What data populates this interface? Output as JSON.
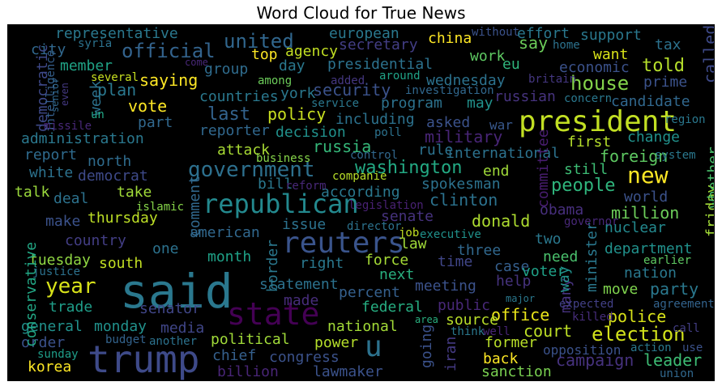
{
  "title": "Word Cloud for True News",
  "colors": {
    "background": "#000000",
    "frame": "#ffffff",
    "title": "#000000"
  },
  "words": [
    {
      "text": "said",
      "color": "#2a788e"
    },
    {
      "text": "trump",
      "color": "#3e4a89"
    },
    {
      "text": "reuters",
      "color": "#3a548c"
    },
    {
      "text": "state",
      "color": "#440154"
    },
    {
      "text": "president",
      "color": "#c2df23"
    },
    {
      "text": "republican",
      "color": "#23898e"
    },
    {
      "text": "government",
      "color": "#2d708e"
    },
    {
      "text": "u",
      "color": "#2c728e"
    },
    {
      "text": "new",
      "color": "#fde725"
    },
    {
      "text": "year",
      "color": "#d8e219"
    },
    {
      "text": "election",
      "color": "#d2e21b"
    },
    {
      "text": "house",
      "color": "#84d44b"
    },
    {
      "text": "official",
      "color": "#33638d"
    },
    {
      "text": "united",
      "color": "#31678e"
    },
    {
      "text": "washington",
      "color": "#23a983"
    },
    {
      "text": "people",
      "color": "#2fb47c"
    },
    {
      "text": "told",
      "color": "#b5de2b"
    },
    {
      "text": "last",
      "color": "#33638d"
    },
    {
      "text": "military",
      "color": "#482576"
    },
    {
      "text": "foreign",
      "color": "#5ec962"
    },
    {
      "text": "policy",
      "color": "#c8e020"
    },
    {
      "text": "russia",
      "color": "#35b779"
    },
    {
      "text": "clinton",
      "color": "#2c728e"
    },
    {
      "text": "donald",
      "color": "#addc30"
    },
    {
      "text": "million",
      "color": "#6ccd5a"
    },
    {
      "text": "security",
      "color": "#3b528b"
    },
    {
      "text": "court",
      "color": "#bddf26"
    },
    {
      "text": "police",
      "color": "#d8e219"
    },
    {
      "text": "party",
      "color": "#2a788e"
    },
    {
      "text": "campaign",
      "color": "#46327e"
    },
    {
      "text": "leader",
      "color": "#3dbc74"
    },
    {
      "text": "office",
      "color": "#eae51a"
    },
    {
      "text": "statement",
      "color": "#2c728e"
    },
    {
      "text": "federal",
      "color": "#26ad81"
    },
    {
      "text": "congress",
      "color": "#3b528b"
    },
    {
      "text": "political",
      "color": "#a0da39"
    },
    {
      "text": "korea",
      "color": "#fde725"
    },
    {
      "text": "billion",
      "color": "#482576"
    },
    {
      "text": "chief",
      "color": "#35608d"
    },
    {
      "text": "trade",
      "color": "#1f9e89"
    },
    {
      "text": "monday",
      "color": "#21918c"
    },
    {
      "text": "general",
      "color": "#21918c"
    },
    {
      "text": "order",
      "color": "#3b528b"
    },
    {
      "text": "senator",
      "color": "#404688"
    },
    {
      "text": "national",
      "color": "#a2da37"
    },
    {
      "text": "former",
      "color": "#b8de29"
    },
    {
      "text": "source",
      "color": "#b8de29"
    },
    {
      "text": "back",
      "color": "#fde725"
    },
    {
      "text": "sanction",
      "color": "#7ad151"
    },
    {
      "text": "lawmaker",
      "color": "#3b528b"
    },
    {
      "text": "power",
      "color": "#b5de2b"
    },
    {
      "text": "media",
      "color": "#404688"
    },
    {
      "text": "tuesday",
      "color": "#90d743"
    },
    {
      "text": "south",
      "color": "#c2df23"
    },
    {
      "text": "thursday",
      "color": "#bddf26"
    },
    {
      "text": "make",
      "color": "#3b528b"
    },
    {
      "text": "country",
      "color": "#433e85"
    },
    {
      "text": "american",
      "color": "#31688e"
    },
    {
      "text": "one",
      "color": "#2c728e"
    },
    {
      "text": "month",
      "color": "#1fa187"
    },
    {
      "text": "right",
      "color": "#2a788e"
    },
    {
      "text": "force",
      "color": "#a5db36"
    },
    {
      "text": "next",
      "color": "#29af7f"
    },
    {
      "text": "meeting",
      "color": "#3b528b"
    },
    {
      "text": "percent",
      "color": "#35608d"
    },
    {
      "text": "made",
      "color": "#472d7b"
    },
    {
      "text": "public",
      "color": "#482878"
    },
    {
      "text": "time",
      "color": "#404688"
    },
    {
      "text": "three",
      "color": "#31688e"
    },
    {
      "text": "case",
      "color": "#355f8d"
    },
    {
      "text": "need",
      "color": "#4ac16d"
    },
    {
      "text": "two",
      "color": "#2a788e"
    },
    {
      "text": "nuclear",
      "color": "#23898e"
    },
    {
      "text": "department",
      "color": "#21918c"
    },
    {
      "text": "nation",
      "color": "#2a788e"
    },
    {
      "text": "move",
      "color": "#7fd34e"
    },
    {
      "text": "help",
      "color": "#46337e"
    },
    {
      "text": "voter",
      "color": "#1fa187"
    },
    {
      "text": "minister",
      "color": "#2a788e"
    },
    {
      "text": "many",
      "color": "#46327e"
    },
    {
      "text": "way",
      "color": "#21918c"
    },
    {
      "text": "iran",
      "color": "#443a83"
    },
    {
      "text": "going",
      "color": "#3b528b"
    },
    {
      "text": "opposition",
      "color": "#3b528b"
    },
    {
      "text": "action",
      "color": "#2a788e"
    },
    {
      "text": "use",
      "color": "#3b528b"
    },
    {
      "text": "union",
      "color": "#31688e"
    },
    {
      "text": "call",
      "color": "#433e85"
    },
    {
      "text": "agreement",
      "color": "#33638d"
    },
    {
      "text": "expected",
      "color": "#424086"
    },
    {
      "text": "killed",
      "color": "#472d7b"
    },
    {
      "text": "earlier",
      "color": "#5ec962"
    },
    {
      "text": "major",
      "color": "#2a788e"
    },
    {
      "text": "think",
      "color": "#2a788e"
    },
    {
      "text": "well",
      "color": "#482576"
    },
    {
      "text": "area",
      "color": "#29af7f"
    },
    {
      "text": "budget",
      "color": "#33638d"
    },
    {
      "text": "another",
      "color": "#2c728e"
    },
    {
      "text": "sunday",
      "color": "#1f9e89"
    },
    {
      "text": "justice",
      "color": "#2c728e"
    },
    {
      "text": "conservative",
      "color": "#22a785"
    },
    {
      "text": "vote",
      "color": "#fde725"
    },
    {
      "text": "part",
      "color": "#31688e"
    },
    {
      "text": "saying",
      "color": "#fde725"
    },
    {
      "text": "plan",
      "color": "#2a788e"
    },
    {
      "text": "week",
      "color": "#2c728e"
    },
    {
      "text": "member",
      "color": "#20a386"
    },
    {
      "text": "city",
      "color": "#31688e"
    },
    {
      "text": "representative",
      "color": "#2a788e"
    },
    {
      "text": "syria",
      "color": "#2c728e"
    },
    {
      "text": "democratic",
      "color": "#3e4989"
    },
    {
      "text": "intelligence",
      "color": "#355f8d"
    },
    {
      "text": "senior",
      "color": "#31688e"
    },
    {
      "text": "even",
      "color": "#443983"
    },
    {
      "text": "several",
      "color": "#c8e020"
    },
    {
      "text": "come",
      "color": "#482878"
    },
    {
      "text": "missile",
      "color": "#482878"
    },
    {
      "text": "un",
      "color": "#22a785"
    },
    {
      "text": "administration",
      "color": "#2a788e"
    },
    {
      "text": "report",
      "color": "#2f6b8e"
    },
    {
      "text": "white",
      "color": "#2c728e"
    },
    {
      "text": "democrat",
      "color": "#3e4a89"
    },
    {
      "text": "talk",
      "color": "#9bd93c"
    },
    {
      "text": "deal",
      "color": "#2c728e"
    },
    {
      "text": "take",
      "color": "#a0da39"
    },
    {
      "text": "islamic",
      "color": "#86d549"
    },
    {
      "text": "north",
      "color": "#2f6c8e"
    },
    {
      "text": "reporter",
      "color": "#31688e"
    },
    {
      "text": "attack",
      "color": "#a8db34"
    },
    {
      "text": "comment",
      "color": "#31688e"
    },
    {
      "text": "bill",
      "color": "#2a788e"
    },
    {
      "text": "issue",
      "color": "#2c728e"
    },
    {
      "text": "border",
      "color": "#2a788e"
    },
    {
      "text": "director",
      "color": "#2c728e"
    },
    {
      "text": "job",
      "color": "#c2df23"
    },
    {
      "text": "legislation",
      "color": "#482173"
    },
    {
      "text": "executive",
      "color": "#20928c"
    },
    {
      "text": "law",
      "color": "#a0da39"
    },
    {
      "text": "senate",
      "color": "#46327e"
    },
    {
      "text": "according",
      "color": "#2a788e"
    },
    {
      "text": "spokesman",
      "color": "#2c728e"
    },
    {
      "text": "reform",
      "color": "#482878"
    },
    {
      "text": "companie",
      "color": "#b8de29"
    },
    {
      "text": "business",
      "color": "#86d549"
    },
    {
      "text": "control",
      "color": "#31688e"
    },
    {
      "text": "decision",
      "color": "#21918c"
    },
    {
      "text": "poll",
      "color": "#2c728e"
    },
    {
      "text": "including",
      "color": "#2c728e"
    },
    {
      "text": "asked",
      "color": "#3b528b"
    },
    {
      "text": "war",
      "color": "#38588c"
    },
    {
      "text": "rule",
      "color": "#2c728e"
    },
    {
      "text": "international",
      "color": "#2c728e"
    },
    {
      "text": "end",
      "color": "#a0da39"
    },
    {
      "text": "committee",
      "color": "#481d6f"
    },
    {
      "text": "obama",
      "color": "#472f7d"
    },
    {
      "text": "governor",
      "color": "#482878"
    },
    {
      "text": "world",
      "color": "#3b528b"
    },
    {
      "text": "friday",
      "color": "#a2da37"
    },
    {
      "text": "still",
      "color": "#3dbc74"
    },
    {
      "text": "first",
      "color": "#b5de2b"
    },
    {
      "text": "change",
      "color": "#21918c"
    },
    {
      "text": "system",
      "color": "#2a788e"
    },
    {
      "text": "whether",
      "color": "#4ac16d"
    },
    {
      "text": "region",
      "color": "#2a788e"
    },
    {
      "text": "candidate",
      "color": "#31688e"
    },
    {
      "text": "concern",
      "color": "#2a788e"
    },
    {
      "text": "prime",
      "color": "#3b528b"
    },
    {
      "text": "britain",
      "color": "#453781"
    },
    {
      "text": "russian",
      "color": "#46337e"
    },
    {
      "text": "may",
      "color": "#21918c"
    },
    {
      "text": "program",
      "color": "#2c728e"
    },
    {
      "text": "service",
      "color": "#2a788e"
    },
    {
      "text": "investigation",
      "color": "#31688e"
    },
    {
      "text": "wednesday",
      "color": "#2c728e"
    },
    {
      "text": "added",
      "color": "#453781"
    },
    {
      "text": "around",
      "color": "#20a386"
    },
    {
      "text": "among",
      "color": "#6ccd5a"
    },
    {
      "text": "york",
      "color": "#2a788e"
    },
    {
      "text": "presidential",
      "color": "#2c728e"
    },
    {
      "text": "group",
      "color": "#2f6c8e"
    },
    {
      "text": "day",
      "color": "#2a788e"
    },
    {
      "text": "countries",
      "color": "#2a788e"
    },
    {
      "text": "top",
      "color": "#fde725"
    },
    {
      "text": "agency",
      "color": "#c2df23"
    },
    {
      "text": "european",
      "color": "#2a788e"
    },
    {
      "text": "secretary",
      "color": "#433e85"
    },
    {
      "text": "china",
      "color": "#fde725"
    },
    {
      "text": "work",
      "color": "#5ec962"
    },
    {
      "text": "eu",
      "color": "#2fb47c"
    },
    {
      "text": "without",
      "color": "#3b528b"
    },
    {
      "text": "effort",
      "color": "#2a788e"
    },
    {
      "text": "say",
      "color": "#6ccd5a"
    },
    {
      "text": "home",
      "color": "#2c728e"
    },
    {
      "text": "support",
      "color": "#2a788e"
    },
    {
      "text": "want",
      "color": "#d8e219"
    },
    {
      "text": "economic",
      "color": "#3b528b"
    },
    {
      "text": "tax",
      "color": "#2c728e"
    },
    {
      "text": "called",
      "color": "#3e4a89"
    }
  ]
}
